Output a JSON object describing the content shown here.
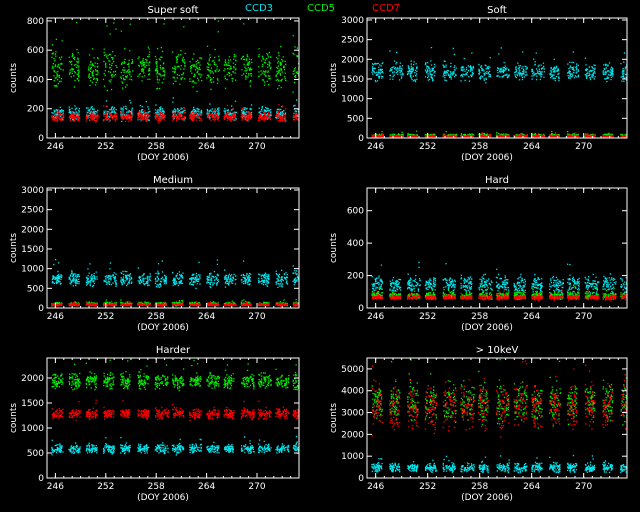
{
  "legend": [
    {
      "name": "CCD3",
      "color": "#00e5ee"
    },
    {
      "name": "CCD5",
      "color": "#00ee00"
    },
    {
      "name": "CCD7",
      "color": "#ff0000"
    }
  ],
  "chart_data": [
    {
      "type": "scatter",
      "title": "Super soft",
      "xlabel": "(DOY 2006)",
      "ylabel": "counts",
      "xlim": [
        245,
        275
      ],
      "ylim": [
        0,
        820
      ],
      "xticks": [
        246,
        252,
        258,
        264,
        270
      ],
      "yticks": [
        0,
        200,
        400,
        600,
        800
      ],
      "series": [
        {
          "name": "CCD3",
          "color": "#00e5ee",
          "level": 170,
          "spread": 40
        },
        {
          "name": "CCD5",
          "color": "#00ee00",
          "level": 480,
          "spread": 120
        },
        {
          "name": "CCD7",
          "color": "#ff0000",
          "level": 150,
          "spread": 30
        }
      ]
    },
    {
      "type": "scatter",
      "title": "Soft",
      "xlabel": "(DOY 2006)",
      "ylabel": "counts",
      "xlim": [
        245,
        275
      ],
      "ylim": [
        0,
        3050
      ],
      "xticks": [
        246,
        252,
        258,
        264,
        270
      ],
      "yticks": [
        0,
        500,
        1000,
        1500,
        2000,
        2500,
        3000
      ],
      "series": [
        {
          "name": "CCD3",
          "color": "#00e5ee",
          "level": 1700,
          "spread": 220
        },
        {
          "name": "CCD5",
          "color": "#00ee00",
          "level": 80,
          "spread": 40
        },
        {
          "name": "CCD7",
          "color": "#ff0000",
          "level": 60,
          "spread": 30
        }
      ]
    },
    {
      "type": "scatter",
      "title": "Medium",
      "xlabel": "(DOY 2006)",
      "ylabel": "counts",
      "xlim": [
        245,
        275
      ],
      "ylim": [
        0,
        3050
      ],
      "xticks": [
        246,
        252,
        258,
        264,
        270
      ],
      "yticks": [
        0,
        500,
        1000,
        1500,
        2000,
        2500,
        3000
      ],
      "series": [
        {
          "name": "CCD3",
          "color": "#00e5ee",
          "level": 750,
          "spread": 180
        },
        {
          "name": "CCD5",
          "color": "#00ee00",
          "level": 120,
          "spread": 40
        },
        {
          "name": "CCD7",
          "color": "#ff0000",
          "level": 100,
          "spread": 30
        }
      ]
    },
    {
      "type": "scatter",
      "title": "Hard",
      "xlabel": "(DOY 2006)",
      "ylabel": "counts",
      "xlim": [
        245,
        275
      ],
      "ylim": [
        0,
        740
      ],
      "xticks": [
        246,
        252,
        258,
        264,
        270
      ],
      "yticks": [
        0,
        200,
        400,
        600
      ],
      "series": [
        {
          "name": "CCD3",
          "color": "#00e5ee",
          "level": 150,
          "spread": 50
        },
        {
          "name": "CCD5",
          "color": "#00ee00",
          "level": 80,
          "spread": 20
        },
        {
          "name": "CCD7",
          "color": "#ff0000",
          "level": 70,
          "spread": 15
        }
      ]
    },
    {
      "type": "scatter",
      "title": "Harder",
      "xlabel": "(DOY 2006)",
      "ylabel": "counts",
      "xlim": [
        245,
        275
      ],
      "ylim": [
        0,
        2400
      ],
      "xticks": [
        246,
        252,
        258,
        264,
        270
      ],
      "yticks": [
        0,
        500,
        1000,
        1500,
        2000
      ],
      "series": [
        {
          "name": "CCD3",
          "color": "#00e5ee",
          "level": 600,
          "spread": 90
        },
        {
          "name": "CCD5",
          "color": "#00ee00",
          "level": 1950,
          "spread": 150
        },
        {
          "name": "CCD7",
          "color": "#ff0000",
          "level": 1300,
          "spread": 100
        }
      ]
    },
    {
      "type": "scatter",
      "title": "> 10keV",
      "xlabel": "(DOY 2006)",
      "ylabel": "counts",
      "xlim": [
        245,
        275
      ],
      "ylim": [
        0,
        5500
      ],
      "xticks": [
        246,
        252,
        258,
        264,
        270
      ],
      "yticks": [
        0,
        1000,
        2000,
        3000,
        4000,
        5000
      ],
      "series": [
        {
          "name": "CCD3",
          "color": "#00e5ee",
          "level": 500,
          "spread": 200
        },
        {
          "name": "CCD5",
          "color": "#00ee00",
          "level": 3500,
          "spread": 900
        },
        {
          "name": "CCD7",
          "color": "#ff0000",
          "level": 3300,
          "spread": 1000
        }
      ]
    }
  ]
}
